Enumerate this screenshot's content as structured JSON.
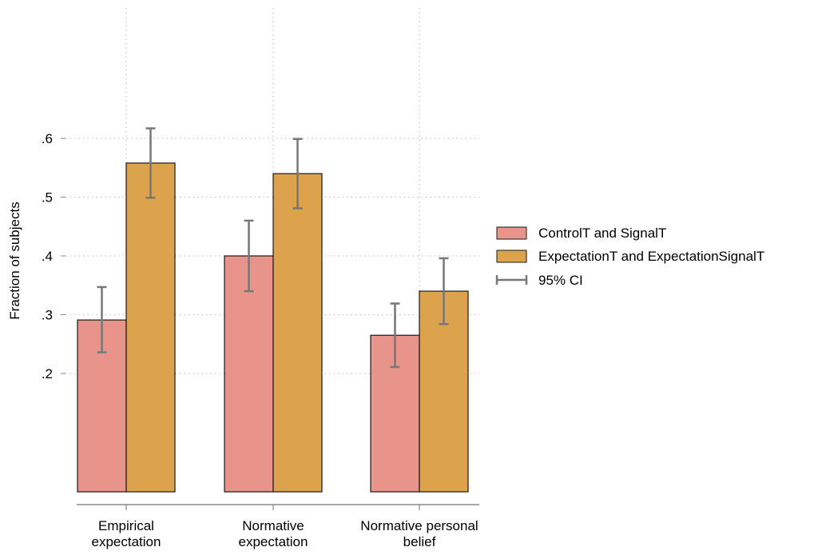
{
  "chart_data": {
    "type": "bar",
    "title": "",
    "xlabel": "",
    "ylabel": "Fraction of subjects",
    "ylim": [
      0,
      0.6
    ],
    "yticks": [
      0.2,
      0.3,
      0.4,
      0.5,
      0.6
    ],
    "ytick_labels": [
      ".2",
      ".3",
      ".4",
      ".5",
      ".6"
    ],
    "categories": [
      [
        "Empirical",
        "expectation"
      ],
      [
        "Normative",
        "expectation"
      ],
      [
        "Normative personal",
        "belief"
      ]
    ],
    "series": [
      {
        "name": "ControlT and SignalT",
        "color": "#E8948A",
        "values": [
          0.291,
          0.4,
          0.265
        ],
        "ci_low": [
          0.236,
          0.34,
          0.211
        ],
        "ci_high": [
          0.347,
          0.46,
          0.319
        ]
      },
      {
        "name": "ExpectationT and ExpectationSignalT",
        "color": "#DDA24C",
        "values": [
          0.558,
          0.54,
          0.34
        ],
        "ci_low": [
          0.499,
          0.481,
          0.284
        ],
        "ci_high": [
          0.617,
          0.599,
          0.396
        ]
      }
    ],
    "error_bar_label": "95% CI",
    "error_bar_color": "#777777",
    "grid": true,
    "legend_position": "right"
  }
}
